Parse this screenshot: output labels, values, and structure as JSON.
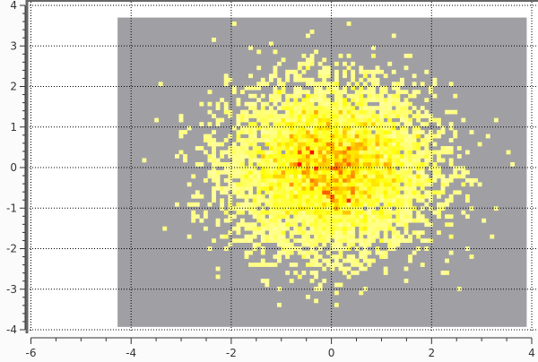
{
  "chart_data": {
    "type": "heatmap",
    "subtype": "2d-histogram",
    "title": "",
    "xlabel": "",
    "ylabel": "",
    "xlim": [
      -6,
      4
    ],
    "ylim": [
      -4,
      4
    ],
    "histogram_range": {
      "x": [
        -4.27,
        3.9
      ],
      "y": [
        -3.93,
        3.7
      ]
    },
    "bins": {
      "x": 100,
      "y": 77
    },
    "sample_distribution": {
      "type": "bivariate-normal",
      "mean": [
        0,
        0
      ],
      "std": [
        1,
        1
      ],
      "samples": 10000
    },
    "xticks": [
      "-6",
      "-4",
      "-2",
      "0",
      "2",
      "4"
    ],
    "yticks": [
      "-4",
      "-3",
      "-2",
      "-1",
      "0",
      "1",
      "2",
      "3",
      "4"
    ],
    "grid": true,
    "colors": {
      "empty_bin": "#a0a0a4",
      "low": "#ffff99",
      "mid": "#ffff00",
      "high": "#ff8000",
      "max": "#ff0000",
      "background": "#ffffff",
      "axis": "#666666"
    }
  }
}
